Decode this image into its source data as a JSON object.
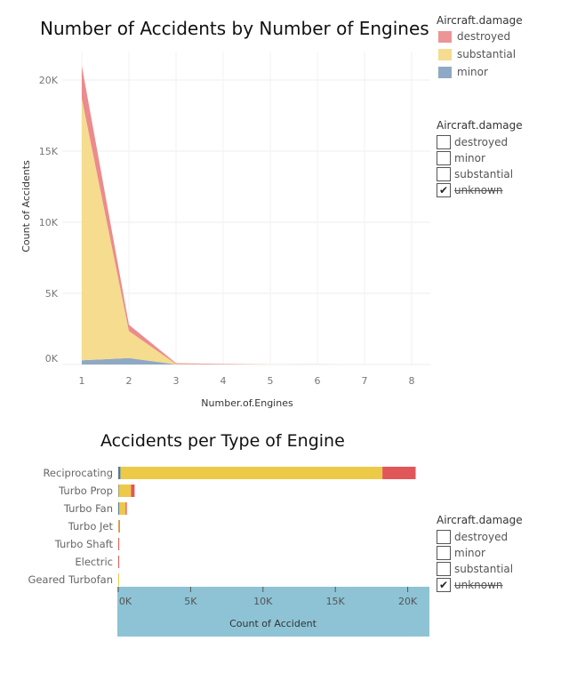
{
  "chart_data": [
    {
      "type": "area",
      "title": "Number of Accidents by Number of Engines",
      "xlabel": "Number.of.Engines",
      "ylabel": "Count of Accidents",
      "x": [
        1,
        2,
        3,
        4,
        5,
        6,
        7,
        8
      ],
      "ylim": [
        0,
        22000
      ],
      "yticks": [
        0,
        5000,
        10000,
        15000,
        20000
      ],
      "ytick_labels": [
        "0K",
        "5K",
        "10K",
        "15K",
        "20K"
      ],
      "stacked": true,
      "series": [
        {
          "name": "minor",
          "color": "#8fa9c4",
          "values": [
            300,
            450,
            10,
            5,
            0,
            0,
            0,
            0
          ]
        },
        {
          "name": "substantial",
          "color": "#f5dc8f",
          "values": [
            18400,
            1900,
            20,
            10,
            5,
            2,
            2,
            2
          ]
        },
        {
          "name": "destroyed",
          "color": "#ec8b8d",
          "values": [
            2300,
            450,
            60,
            30,
            5,
            2,
            0,
            0
          ]
        }
      ],
      "legend": {
        "title": "Aircraft.damage",
        "placement": "top-right",
        "items": [
          {
            "label": "destroyed",
            "color": "#ec9597"
          },
          {
            "label": "substantial",
            "color": "#f5dc8f"
          },
          {
            "label": "minor",
            "color": "#8fa9c4"
          }
        ]
      },
      "grid": true
    },
    {
      "type": "bar",
      "orientation": "horizontal",
      "stacked": true,
      "title": "Accidents per Type of Engine",
      "xlabel": "Count of Accident",
      "categories": [
        "Reciprocating",
        "Turbo Prop",
        "Turbo Fan",
        "Turbo Jet",
        "Turbo Shaft",
        "Electric",
        "Geared Turbofan"
      ],
      "xlim": [
        0,
        21500
      ],
      "xticks": [
        0,
        5000,
        10000,
        15000,
        20000
      ],
      "xtick_labels": [
        "0K",
        "5K",
        "10K",
        "15K",
        "20K"
      ],
      "series": [
        {
          "name": "minor",
          "color": "#4e79a7",
          "values": [
            150,
            30,
            60,
            5,
            0,
            0,
            0
          ]
        },
        {
          "name": "substantial",
          "color": "#edc948",
          "values": [
            18100,
            850,
            450,
            40,
            5,
            2,
            1
          ]
        },
        {
          "name": "destroyed",
          "color": "#e15759",
          "values": [
            2300,
            250,
            80,
            60,
            5,
            1,
            0
          ]
        }
      ],
      "axis_background": "#8dc3d5"
    }
  ],
  "filter_top": {
    "title": "Aircraft.damage",
    "items": [
      {
        "label": "destroyed",
        "checked": false,
        "strike": false
      },
      {
        "label": "minor",
        "checked": false,
        "strike": false
      },
      {
        "label": "substantial",
        "checked": false,
        "strike": false
      },
      {
        "label": "unknown",
        "checked": true,
        "strike": true
      }
    ]
  },
  "filter_bottom": {
    "title": "Aircraft.damage",
    "items": [
      {
        "label": "destroyed",
        "checked": false,
        "strike": false
      },
      {
        "label": "minor",
        "checked": false,
        "strike": false
      },
      {
        "label": "substantial",
        "checked": false,
        "strike": false
      },
      {
        "label": "unknown",
        "checked": true,
        "strike": true
      }
    ]
  },
  "check_glyph": "✔"
}
